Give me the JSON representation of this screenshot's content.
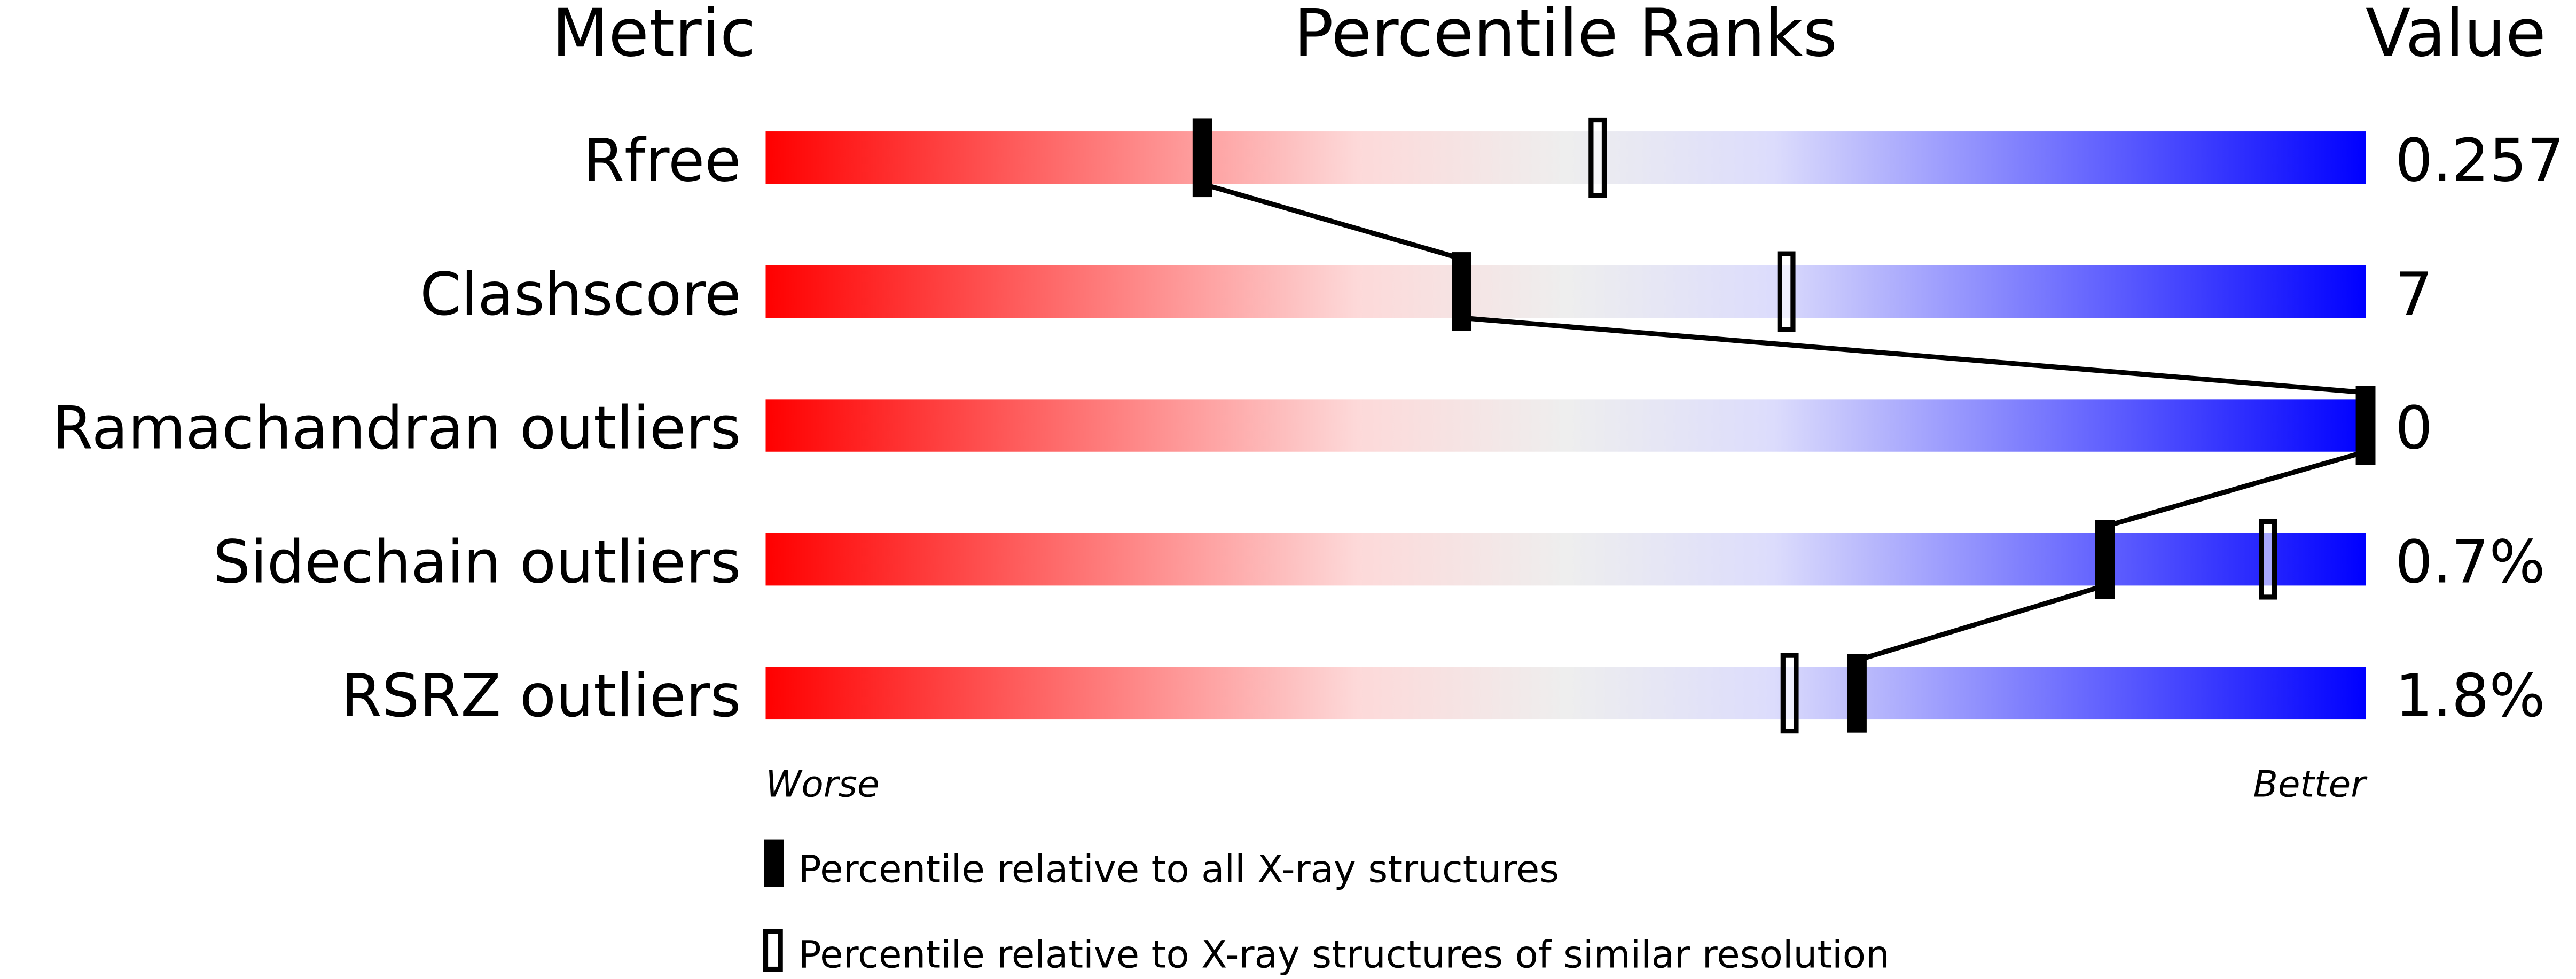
{
  "chart_data": {
    "type": "percentile-bar",
    "headers": {
      "metric": "Metric",
      "ranks": "Percentile Ranks",
      "value": "Value"
    },
    "xlim": [
      0,
      100
    ],
    "axis_labels": {
      "left": "Worse",
      "right": "Better"
    },
    "gradient_colors": [
      "#ff0000",
      "#fdd9d9",
      "#eeeeee",
      "#dcdcfc",
      "#0000ff"
    ],
    "rows": [
      {
        "metric": "Rfree",
        "value": "0.257",
        "percentile_all": 27.3,
        "percentile_similar": 52.0
      },
      {
        "metric": "Clashscore",
        "value": "7",
        "percentile_all": 43.5,
        "percentile_similar": 63.8
      },
      {
        "metric": "Ramachandran outliers",
        "value": "0",
        "percentile_all": 100,
        "percentile_similar": 100
      },
      {
        "metric": "Sidechain outliers",
        "value": "0.7%",
        "percentile_all": 83.7,
        "percentile_similar": 93.9
      },
      {
        "metric": "RSRZ outliers",
        "value": "1.8%",
        "percentile_all": 68.2,
        "percentile_similar": 64.0
      }
    ],
    "legend": [
      {
        "marker": "filled",
        "label": "Percentile relative to all X-ray structures"
      },
      {
        "marker": "open",
        "label": "Percentile relative to X-ray structures of similar resolution"
      }
    ]
  }
}
